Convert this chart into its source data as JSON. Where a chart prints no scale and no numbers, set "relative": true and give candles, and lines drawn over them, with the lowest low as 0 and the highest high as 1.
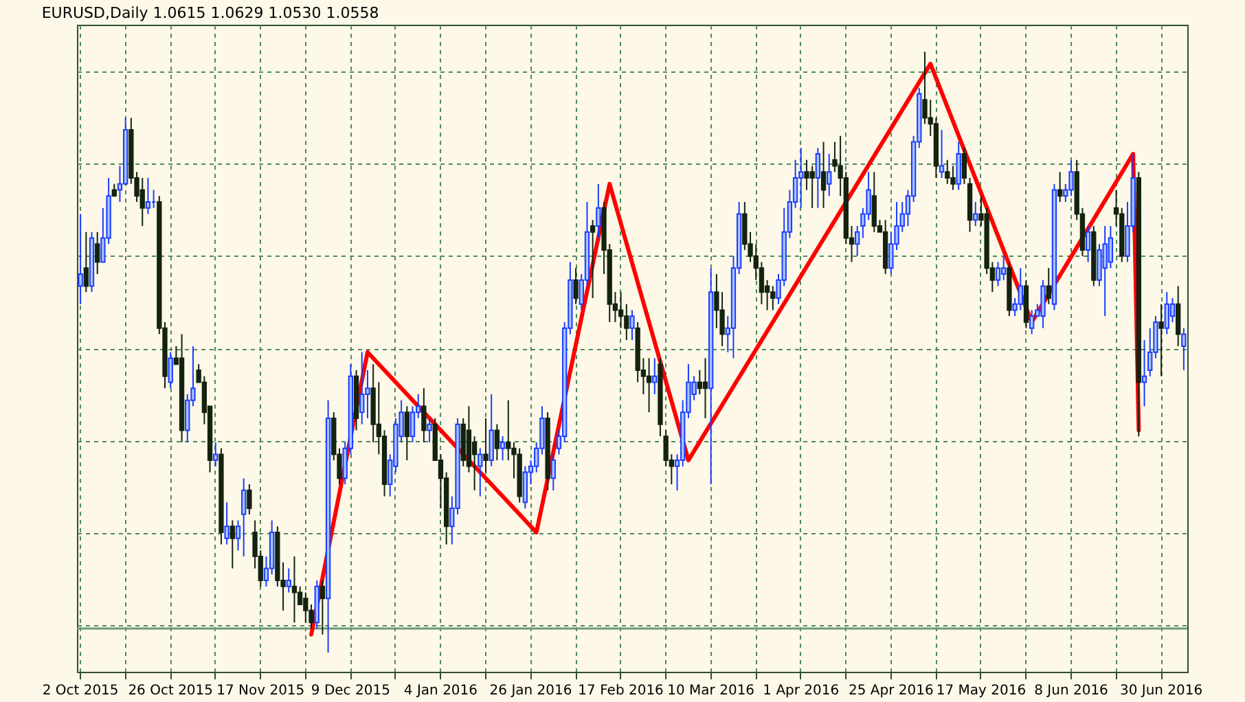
{
  "chart_data": {
    "type": "candlestick",
    "relative": true,
    "title": "EURUSD,Daily 1.0615 1.0629 1.0530 1.0558",
    "grid": true,
    "categories": [
      "2 Oct 2015",
      null,
      null,
      null,
      null,
      null,
      null,
      null,
      null,
      null,
      null,
      null,
      null,
      null,
      null,
      null,
      "26 Oct 2015",
      null,
      null,
      null,
      null,
      null,
      null,
      null,
      null,
      null,
      null,
      null,
      null,
      null,
      null,
      null,
      "17 Nov 2015",
      null,
      null,
      null,
      null,
      null,
      null,
      null,
      null,
      null,
      null,
      null,
      null,
      null,
      null,
      null,
      "9 Dec 2015",
      null,
      null,
      null,
      null,
      null,
      null,
      null,
      null,
      null,
      null,
      null,
      null,
      null,
      null,
      null,
      "4 Jan 2016",
      null,
      null,
      null,
      null,
      null,
      null,
      null,
      null,
      null,
      null,
      null,
      null,
      null,
      null,
      null,
      "26 Jan 2016",
      null,
      null,
      null,
      null,
      null,
      null,
      null,
      null,
      null,
      null,
      null,
      null,
      null,
      null,
      null,
      "17 Feb 2016",
      null,
      null,
      null,
      null,
      null,
      null,
      null,
      null,
      null,
      null,
      null,
      null,
      null,
      null,
      null,
      "10 Mar 2016",
      null,
      null,
      null,
      null,
      null,
      null,
      null,
      null,
      null,
      null,
      null,
      null,
      null,
      null,
      null,
      "1 Apr 2016",
      null,
      null,
      null,
      null,
      null,
      null,
      null,
      null,
      null,
      null,
      null,
      null,
      null,
      null,
      null,
      "25 Apr 2016",
      null,
      null,
      null,
      null,
      null,
      null,
      null,
      null,
      null,
      null,
      null,
      null,
      null,
      null,
      null,
      "17 May 2016",
      null,
      null,
      null,
      null,
      null,
      null,
      null,
      null,
      null,
      null,
      null,
      null,
      null,
      null,
      null,
      "8 Jun 2016",
      null,
      null,
      null,
      null,
      null,
      null,
      null,
      null,
      null,
      null,
      null,
      null,
      null,
      null,
      null,
      "30 Jun 2016",
      null,
      null,
      null,
      null
    ],
    "ohlc": [
      [
        0.61,
        0.73,
        0.58,
        0.63
      ],
      [
        0.64,
        0.7,
        0.6,
        0.61
      ],
      [
        0.61,
        0.7,
        0.6,
        0.69
      ],
      [
        0.68,
        0.7,
        0.63,
        0.65
      ],
      [
        0.65,
        0.74,
        0.65,
        0.69
      ],
      [
        0.69,
        0.79,
        0.68,
        0.76
      ],
      [
        0.77,
        0.78,
        0.76,
        0.76
      ],
      [
        0.77,
        0.81,
        0.75,
        0.78
      ],
      [
        0.78,
        0.89,
        0.78,
        0.87
      ],
      [
        0.87,
        0.89,
        0.78,
        0.79
      ],
      [
        0.79,
        0.8,
        0.75,
        0.76
      ],
      [
        0.77,
        0.79,
        0.71,
        0.74
      ],
      [
        0.74,
        0.79,
        0.73,
        0.75
      ],
      [
        0.75,
        0.77,
        0.74,
        0.75
      ],
      [
        0.75,
        0.76,
        0.53,
        0.54
      ],
      [
        0.54,
        0.55,
        0.44,
        0.46
      ],
      [
        0.45,
        0.5,
        0.44,
        0.49
      ],
      [
        0.49,
        0.51,
        0.48,
        0.48
      ],
      [
        0.49,
        0.53,
        0.35,
        0.37
      ],
      [
        0.37,
        0.43,
        0.35,
        0.42
      ],
      [
        0.42,
        0.51,
        0.41,
        0.44
      ],
      [
        0.47,
        0.48,
        0.45,
        0.45
      ],
      [
        0.45,
        0.46,
        0.38,
        0.4
      ],
      [
        0.41,
        0.41,
        0.3,
        0.32
      ],
      [
        0.32,
        0.35,
        0.31,
        0.33
      ],
      [
        0.33,
        0.34,
        0.18,
        0.2
      ],
      [
        0.19,
        0.25,
        0.18,
        0.21
      ],
      [
        0.21,
        0.22,
        0.14,
        0.19
      ],
      [
        0.19,
        0.22,
        0.17,
        0.21
      ],
      [
        0.23,
        0.29,
        0.16,
        0.27
      ],
      [
        0.27,
        0.28,
        0.23,
        0.24
      ],
      [
        0.2,
        0.22,
        0.14,
        0.16
      ],
      [
        0.16,
        0.17,
        0.11,
        0.12
      ],
      [
        0.12,
        0.16,
        0.11,
        0.14
      ],
      [
        0.14,
        0.22,
        0.13,
        0.2
      ],
      [
        0.2,
        0.21,
        0.11,
        0.12
      ],
      [
        0.12,
        0.15,
        0.07,
        0.11
      ],
      [
        0.11,
        0.14,
        0.1,
        0.12
      ],
      [
        0.11,
        0.16,
        0.05,
        0.1
      ],
      [
        0.1,
        0.11,
        0.08,
        0.08
      ],
      [
        0.09,
        0.1,
        0.05,
        0.07
      ],
      [
        0.07,
        0.08,
        0.04,
        0.05
      ],
      [
        0.05,
        0.12,
        0.04,
        0.11
      ],
      [
        0.11,
        0.12,
        0.03,
        0.09
      ],
      [
        0.09,
        0.42,
        0,
        0.39
      ],
      [
        0.39,
        0.4,
        0.32,
        0.33
      ],
      [
        0.33,
        0.34,
        0.28,
        0.29
      ],
      [
        0.29,
        0.35,
        0.28,
        0.34
      ],
      [
        0.34,
        0.48,
        0.33,
        0.46
      ],
      [
        0.46,
        0.47,
        0.37,
        0.39
      ],
      [
        0.4,
        0.5,
        0.38,
        0.43
      ],
      [
        0.43,
        0.47,
        0.39,
        0.44
      ],
      [
        0.44,
        0.48,
        0.35,
        0.38
      ],
      [
        0.38,
        0.45,
        0.33,
        0.36
      ],
      [
        0.36,
        0.37,
        0.26,
        0.28
      ],
      [
        0.28,
        0.33,
        0.26,
        0.32
      ],
      [
        0.31,
        0.39,
        0.3,
        0.38
      ],
      [
        0.36,
        0.42,
        0.35,
        0.4
      ],
      [
        0.4,
        0.41,
        0.32,
        0.36
      ],
      [
        0.36,
        0.41,
        0.35,
        0.4
      ],
      [
        0.4,
        0.43,
        0.39,
        0.41
      ],
      [
        0.41,
        0.44,
        0.35,
        0.37
      ],
      [
        0.37,
        0.39,
        0.35,
        0.38
      ],
      [
        0.38,
        0.39,
        0.32,
        0.32
      ],
      [
        0.32,
        0.33,
        0.24,
        0.29
      ],
      [
        0.29,
        0.3,
        0.18,
        0.21
      ],
      [
        0.21,
        0.26,
        0.18,
        0.24
      ],
      [
        0.24,
        0.39,
        0.23,
        0.38
      ],
      [
        0.38,
        0.39,
        0.31,
        0.32
      ],
      [
        0.37,
        0.41,
        0.3,
        0.31
      ],
      [
        0.35,
        0.36,
        0.27,
        0.33
      ],
      [
        0.31,
        0.34,
        0.26,
        0.33
      ],
      [
        0.33,
        0.39,
        0.3,
        0.32
      ],
      [
        0.32,
        0.43,
        0.31,
        0.37
      ],
      [
        0.37,
        0.38,
        0.32,
        0.34
      ],
      [
        0.34,
        0.36,
        0.32,
        0.35
      ],
      [
        0.35,
        0.42,
        0.32,
        0.34
      ],
      [
        0.34,
        0.35,
        0.29,
        0.33
      ],
      [
        0.33,
        0.34,
        0.25,
        0.26
      ],
      [
        0.25,
        0.31,
        0.24,
        0.3
      ],
      [
        0.3,
        0.32,
        0.28,
        0.31
      ],
      [
        0.31,
        0.35,
        0.3,
        0.34
      ],
      [
        0.34,
        0.41,
        0.33,
        0.39
      ],
      [
        0.39,
        0.4,
        0.27,
        0.29
      ],
      [
        0.29,
        0.33,
        0.27,
        0.32
      ],
      [
        0.34,
        0.37,
        0.33,
        0.36
      ],
      [
        0.36,
        0.55,
        0.35,
        0.54
      ],
      [
        0.54,
        0.65,
        0.53,
        0.62
      ],
      [
        0.62,
        0.64,
        0.58,
        0.59
      ],
      [
        0.58,
        0.63,
        0.57,
        0.62
      ],
      [
        0.62,
        0.75,
        0.61,
        0.7
      ],
      [
        0.71,
        0.72,
        0.59,
        0.7
      ],
      [
        0.71,
        0.78,
        0.69,
        0.74
      ],
      [
        0.74,
        0.75,
        0.63,
        0.67
      ],
      [
        0.67,
        0.68,
        0.55,
        0.58
      ],
      [
        0.58,
        0.6,
        0.55,
        0.57
      ],
      [
        0.57,
        0.6,
        0.54,
        0.56
      ],
      [
        0.56,
        0.58,
        0.52,
        0.54
      ],
      [
        0.54,
        0.57,
        0.52,
        0.56
      ],
      [
        0.54,
        0.55,
        0.45,
        0.47
      ],
      [
        0.47,
        0.49,
        0.43,
        0.46
      ],
      [
        0.46,
        0.49,
        0.4,
        0.45
      ],
      [
        0.45,
        0.49,
        0.43,
        0.46
      ],
      [
        0.48,
        0.49,
        0.36,
        0.38
      ],
      [
        0.36,
        0.37,
        0.31,
        0.32
      ],
      [
        0.32,
        0.33,
        0.28,
        0.31
      ],
      [
        0.31,
        0.33,
        0.27,
        0.32
      ],
      [
        0.32,
        0.42,
        0.31,
        0.4
      ],
      [
        0.4,
        0.48,
        0.39,
        0.45
      ],
      [
        0.43,
        0.46,
        0.42,
        0.45
      ],
      [
        0.45,
        0.47,
        0.43,
        0.44
      ],
      [
        0.45,
        0.49,
        0.39,
        0.44
      ],
      [
        0.44,
        0.64,
        0.28,
        0.6
      ],
      [
        0.6,
        0.63,
        0.54,
        0.57
      ],
      [
        0.57,
        0.6,
        0.51,
        0.53
      ],
      [
        0.53,
        0.56,
        0.5,
        0.54
      ],
      [
        0.54,
        0.66,
        0.49,
        0.64
      ],
      [
        0.64,
        0.75,
        0.63,
        0.73
      ],
      [
        0.73,
        0.75,
        0.67,
        0.68
      ],
      [
        0.68,
        0.7,
        0.65,
        0.66
      ],
      [
        0.66,
        0.68,
        0.62,
        0.64
      ],
      [
        0.64,
        0.65,
        0.58,
        0.6
      ],
      [
        0.61,
        0.62,
        0.57,
        0.6
      ],
      [
        0.6,
        0.61,
        0.57,
        0.59
      ],
      [
        0.59,
        0.63,
        0.58,
        0.62
      ],
      [
        0.62,
        0.74,
        0.61,
        0.7
      ],
      [
        0.7,
        0.77,
        0.69,
        0.75
      ],
      [
        0.75,
        0.82,
        0.74,
        0.79
      ],
      [
        0.79,
        0.84,
        0.74,
        0.8
      ],
      [
        0.8,
        0.82,
        0.77,
        0.79
      ],
      [
        0.8,
        0.81,
        0.74,
        0.79
      ],
      [
        0.79,
        0.84,
        0.74,
        0.83
      ],
      [
        0.8,
        0.85,
        0.74,
        0.77
      ],
      [
        0.78,
        0.83,
        0.76,
        0.8
      ],
      [
        0.82,
        0.85,
        0.8,
        0.81
      ],
      [
        0.81,
        0.86,
        0.76,
        0.79
      ],
      [
        0.79,
        0.8,
        0.68,
        0.69
      ],
      [
        0.69,
        0.71,
        0.65,
        0.68
      ],
      [
        0.68,
        0.71,
        0.66,
        0.7
      ],
      [
        0.71,
        0.74,
        0.69,
        0.73
      ],
      [
        0.73,
        0.8,
        0.72,
        0.77
      ],
      [
        0.76,
        0.8,
        0.7,
        0.71
      ],
      [
        0.71,
        0.72,
        0.7,
        0.7
      ],
      [
        0.7,
        0.72,
        0.63,
        0.64
      ],
      [
        0.64,
        0.7,
        0.63,
        0.68
      ],
      [
        0.68,
        0.75,
        0.67,
        0.71
      ],
      [
        0.71,
        0.75,
        0.7,
        0.73
      ],
      [
        0.73,
        0.77,
        0.71,
        0.76
      ],
      [
        0.76,
        0.86,
        0.75,
        0.85
      ],
      [
        0.85,
        0.94,
        0.84,
        0.93
      ],
      [
        0.92,
        1,
        0.88,
        0.89
      ],
      [
        0.89,
        0.92,
        0.86,
        0.88
      ],
      [
        0.88,
        0.89,
        0.79,
        0.81
      ],
      [
        0.8,
        0.87,
        0.79,
        0.81
      ],
      [
        0.8,
        0.82,
        0.78,
        0.79
      ],
      [
        0.79,
        0.81,
        0.77,
        0.78
      ],
      [
        0.78,
        0.85,
        0.77,
        0.83
      ],
      [
        0.83,
        0.84,
        0.78,
        0.79
      ],
      [
        0.78,
        0.79,
        0.7,
        0.72
      ],
      [
        0.72,
        0.75,
        0.71,
        0.73
      ],
      [
        0.73,
        0.76,
        0.71,
        0.72
      ],
      [
        0.73,
        0.74,
        0.63,
        0.64
      ],
      [
        0.64,
        0.65,
        0.6,
        0.62
      ],
      [
        0.62,
        0.65,
        0.61,
        0.64
      ],
      [
        0.63,
        0.66,
        0.62,
        0.64
      ],
      [
        0.64,
        0.65,
        0.56,
        0.57
      ],
      [
        0.57,
        0.59,
        0.56,
        0.58
      ],
      [
        0.58,
        0.64,
        0.57,
        0.61
      ],
      [
        0.61,
        0.62,
        0.54,
        0.55
      ],
      [
        0.54,
        0.57,
        0.53,
        0.56
      ],
      [
        0.56,
        0.58,
        0.56,
        0.57
      ],
      [
        0.56,
        0.62,
        0.54,
        0.61
      ],
      [
        0.61,
        0.64,
        0.58,
        0.59
      ],
      [
        0.58,
        0.78,
        0.57,
        0.77
      ],
      [
        0.77,
        0.8,
        0.75,
        0.76
      ],
      [
        0.76,
        0.78,
        0.75,
        0.77
      ],
      [
        0.77,
        0.82,
        0.76,
        0.8
      ],
      [
        0.8,
        0.82,
        0.72,
        0.73
      ],
      [
        0.73,
        0.74,
        0.66,
        0.67
      ],
      [
        0.67,
        0.71,
        0.65,
        0.7
      ],
      [
        0.7,
        0.71,
        0.61,
        0.62
      ],
      [
        0.62,
        0.68,
        0.61,
        0.67
      ],
      [
        0.64,
        0.71,
        0.56,
        0.68
      ],
      [
        0.65,
        0.71,
        0.64,
        0.69
      ],
      [
        0.74,
        0.77,
        0.71,
        0.73
      ],
      [
        0.73,
        0.74,
        0.65,
        0.66
      ],
      [
        0.66,
        0.75,
        0.65,
        0.71
      ],
      [
        0.71,
        0.83,
        0.7,
        0.79
      ],
      [
        0.79,
        0.8,
        0.36,
        0.45
      ],
      [
        0.45,
        0.52,
        0.41,
        0.46
      ],
      [
        0.47,
        0.54,
        0.46,
        0.5
      ],
      [
        0.5,
        0.56,
        0.49,
        0.55
      ],
      [
        0.55,
        0.58,
        0.46,
        0.54
      ],
      [
        0.54,
        0.6,
        0.53,
        0.58
      ],
      [
        0.56,
        0.59,
        0.55,
        0.58
      ],
      [
        0.58,
        0.61,
        0.51,
        0.53
      ],
      [
        0.51,
        0.54,
        0.47,
        0.53
      ]
    ],
    "series": [
      {
        "type": "line",
        "color": "#ff0000",
        "values": [
          null,
          null,
          null,
          null,
          null,
          null,
          null,
          null,
          null,
          null,
          null,
          null,
          null,
          null,
          null,
          null,
          null,
          null,
          null,
          null,
          null,
          null,
          null,
          null,
          null,
          null,
          null,
          null,
          null,
          null,
          null,
          null,
          null,
          null,
          null,
          null,
          null,
          null,
          null,
          null,
          null,
          0.03,
          null,
          null,
          null,
          null,
          null,
          null,
          null,
          null,
          null,
          0.5,
          null,
          null,
          null,
          null,
          null,
          null,
          null,
          null,
          null,
          null,
          null,
          null,
          null,
          null,
          null,
          null,
          null,
          null,
          null,
          null,
          null,
          null,
          null,
          null,
          null,
          null,
          null,
          null,
          null,
          0.2,
          null,
          null,
          null,
          null,
          null,
          null,
          null,
          null,
          null,
          null,
          null,
          null,
          0.78,
          null,
          null,
          null,
          null,
          null,
          null,
          null,
          null,
          null,
          null,
          null,
          null,
          null,
          0.32,
          null,
          null,
          null,
          null,
          null,
          null,
          null,
          null,
          null,
          null,
          null,
          null,
          null,
          null,
          null,
          null,
          null,
          null,
          null,
          null,
          null,
          null,
          null,
          null,
          null,
          null,
          null,
          null,
          null,
          null,
          null,
          null,
          null,
          null,
          null,
          null,
          null,
          null,
          null,
          null,
          null,
          null,
          0.98,
          null,
          null,
          null,
          null,
          null,
          null,
          null,
          null,
          null,
          null,
          null,
          null,
          null,
          null,
          null,
          null,
          null,
          0.55,
          null,
          null,
          null,
          null,
          null,
          null,
          null,
          null,
          null,
          null,
          null,
          null,
          null,
          null,
          null,
          null,
          null,
          0.83,
          0.37,
          null,
          null,
          null,
          null,
          null,
          null,
          null,
          null
        ]
      }
    ],
    "ref_lines": [
      {
        "axis": "y",
        "value": 0.04,
        "color": "#6a9a78",
        "line_style": "solid"
      }
    ]
  }
}
